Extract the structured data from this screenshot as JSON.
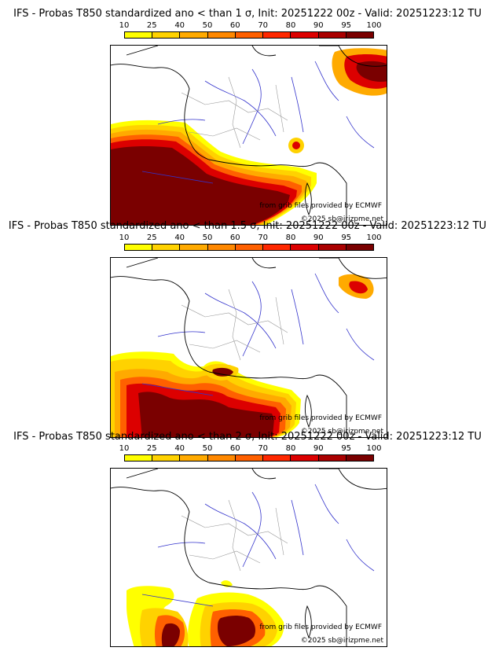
{
  "colorbar": {
    "ticks": [
      "10",
      "25",
      "40",
      "50",
      "60",
      "70",
      "80",
      "90",
      "95",
      "100"
    ],
    "colors": [
      "#ffff00",
      "#ffd200",
      "#ffaa00",
      "#ff8800",
      "#ff6000",
      "#ff2800",
      "#dc0000",
      "#aa0000",
      "#7a0000"
    ]
  },
  "map_colors": {
    "land": "#ffffff",
    "borders": "#999999",
    "rivers": "#3333cc",
    "coast": "#000000"
  },
  "panels": [
    {
      "title": "IFS - Probas T850  standardized ano < than 1 σ, Init: 20251222 00z - Valid: 20251223:12 TU",
      "credit": "from grib files provided by ECMWF",
      "copyright": "©2025 sb@irizpme.net"
    },
    {
      "title": "IFS - Probas T850  standardized ano < than 1.5 σ, Init: 20251222 00z - Valid: 20251223:12 TU",
      "credit": "from grib files provided by ECMWF",
      "copyright": "©2025 sb@irizpme.net"
    },
    {
      "title": "IFS - Probas T850  standardized ano < than 2 σ, Init: 20251222 00z - Valid: 20251223:12 TU",
      "credit": "from grib files provided by ECMWF",
      "copyright": "©2025 sb@irizpme.net"
    }
  ]
}
